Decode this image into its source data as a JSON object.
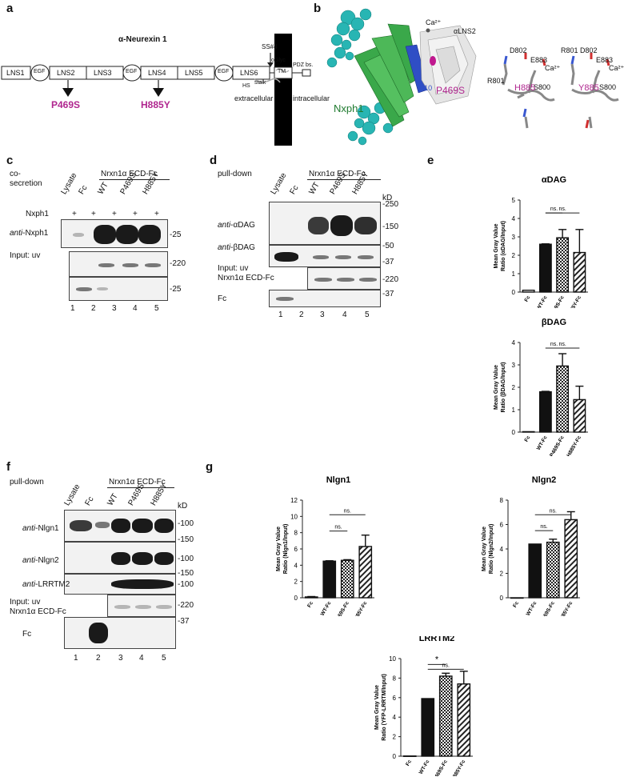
{
  "panel_labels": {
    "a": "a",
    "b": "b",
    "c": "c",
    "d": "d",
    "e": "e",
    "f": "f",
    "g": "g"
  },
  "panel_a": {
    "title": "α-Neurexin 1",
    "domains": [
      "LNS1",
      "EGF",
      "LNS2",
      "LNS3",
      "EGF",
      "LNS4",
      "LNS5",
      "EGF",
      "LNS6",
      "stalk",
      "TM",
      "PDZ bs."
    ],
    "ss4": "SS#4",
    "oglyc": "oGlyc",
    "hs": "HS",
    "extracellular": "extracellular",
    "intracellular": "intracellular",
    "mutation1": "P469S",
    "mutation2": "H885Y"
  },
  "panel_b": {
    "ca": "Ca²⁺",
    "alns2": "αLNS2",
    "nxph1": "Nxph1",
    "beta10": "β10",
    "p469s": "P469S",
    "left": {
      "d802": "D802",
      "e883": "E883",
      "ca": "Ca²⁺",
      "r801": "R801",
      "s800": "S800",
      "h885": "H885"
    },
    "right": {
      "r801": "R801",
      "d802": "D802",
      "e883": "E883",
      "ca": "Ca²⁺",
      "s800": "S800",
      "y885": "Y885"
    }
  },
  "panel_c": {
    "cosecretion": "co-\nsecretion",
    "header": "Nrxn1α ECD-Fc",
    "lanes": [
      "Lysate",
      "Fc",
      "WT",
      "P469S",
      "H885Y"
    ],
    "nxph1_row": "Nxph1",
    "plus": "+",
    "anti": "anti",
    "antibody": "-Nxph1",
    "input": "Input: uv",
    "mw": [
      "-25",
      "-220",
      "-25"
    ],
    "lane_numbers": [
      "1",
      "2",
      "3",
      "4",
      "5"
    ]
  },
  "panel_d": {
    "pulldown": "pull-down",
    "header": "Nrxn1α ECD-Fc",
    "lanes": [
      "Lysate",
      "Fc",
      "WT",
      "P469S",
      "H885Y"
    ],
    "kd": "kD",
    "anti": "anti",
    "ab1": "-αDAG",
    "ab2": "-βDAG",
    "input": "Input: uv",
    "input2": "Nrxn1α ECD-Fc",
    "fc": "Fc",
    "mw": [
      "-250",
      "-150",
      "-50",
      "-37",
      "-220",
      "-37"
    ],
    "lane_numbers": [
      "1",
      "2",
      "3",
      "4",
      "5"
    ]
  },
  "panel_f": {
    "pulldown": "pull-down",
    "header": "Nrxn1α ECD-Fc",
    "lanes": [
      "Lysate",
      "Fc",
      "WT",
      "P469S",
      "H885Y"
    ],
    "kd": "kD",
    "anti": "anti",
    "ab1": "-Nlgn1",
    "ab2": "-Nlgn2",
    "ab3": "-LRRTM2",
    "input": "Input: uv",
    "input2": "Nrxn1α ECD-Fc",
    "fc": "Fc",
    "mw": [
      "-100",
      "-150",
      "-100",
      "-150",
      "-100",
      "-220",
      "-37"
    ],
    "lane_numbers": [
      "1",
      "2",
      "3",
      "4",
      "5"
    ]
  },
  "chart_data": [
    {
      "type": "bar",
      "title": "αDAG",
      "ylabel": "Mean Gray Value\nRatio (αDAG/Input)",
      "categories": [
        "Fc",
        "WT-Fc",
        "P469S-Fc",
        "H885Y-Fc"
      ],
      "values": [
        0.1,
        2.6,
        2.95,
        2.15
      ],
      "errors": [
        0,
        0.02,
        0.45,
        1.25
      ],
      "ylim": [
        0,
        5
      ],
      "yticks": [
        0,
        1,
        2,
        3,
        4,
        5
      ],
      "sig": [
        {
          "from": 1,
          "to": 2,
          "label": "ns.",
          "level": 4.3
        },
        {
          "from": 1,
          "to": 3,
          "label": "ns.",
          "level": 4.3
        }
      ]
    },
    {
      "type": "bar",
      "title": "βDAG",
      "ylabel": "Mean Gray Value\nRatio (βDAG/Input)",
      "categories": [
        "Fc",
        "WT-Fc",
        "P469S-Fc",
        "H885Y-Fc"
      ],
      "values": [
        0.02,
        1.8,
        2.95,
        1.45
      ],
      "errors": [
        0,
        0.02,
        0.55,
        0.6
      ],
      "ylim": [
        0,
        4
      ],
      "yticks": [
        0,
        1,
        2,
        3,
        4
      ],
      "sig": [
        {
          "from": 1,
          "to": 2,
          "label": "ns.",
          "level": 3.75
        },
        {
          "from": 1,
          "to": 3,
          "label": "ns.",
          "level": 3.75
        }
      ]
    },
    {
      "type": "bar",
      "title": "Nlgn1",
      "ylabel": "Mean Gray Value\nRatio (Nlgn1/Input)",
      "categories": [
        "Fc",
        "WT-Fc",
        "P469S-Fc",
        "H885Y-Fc"
      ],
      "values": [
        0.1,
        4.5,
        4.6,
        6.3
      ],
      "errors": [
        0.05,
        0.05,
        0.08,
        1.4
      ],
      "ylim": [
        0,
        12
      ],
      "yticks": [
        0,
        2,
        4,
        6,
        8,
        10,
        12
      ],
      "sig": [
        {
          "from": 1,
          "to": 2,
          "label": "ns.",
          "level": 8.2
        },
        {
          "from": 1,
          "to": 3,
          "label": "ns.",
          "level": 10.2
        }
      ]
    },
    {
      "type": "bar",
      "title": "Nlgn2",
      "ylabel": "Mean Gray Value\nRatio (Nlgn2/Input)",
      "categories": [
        "Fc",
        "WT-Fc",
        "P469S-Fc",
        "H885Y-Fc"
      ],
      "values": [
        0,
        4.4,
        4.55,
        6.4
      ],
      "errors": [
        0,
        0,
        0.25,
        0.65
      ],
      "ylim": [
        0,
        8
      ],
      "yticks": [
        0,
        2,
        4,
        6,
        8
      ],
      "sig": [
        {
          "from": 1,
          "to": 2,
          "label": "ns.",
          "level": 5.5
        },
        {
          "from": 1,
          "to": 3,
          "label": "ns.",
          "level": 6.8
        }
      ]
    },
    {
      "type": "bar",
      "title": "LRRTM2",
      "ylabel": "Mean Gray Value\nRatio (YFP-LRRTM/Input)",
      "categories": [
        "Fc",
        "WT-Fc",
        "P469S-Fc",
        "H885Y-Fc"
      ],
      "values": [
        0.02,
        5.9,
        8.2,
        7.4
      ],
      "errors": [
        0,
        0,
        0.3,
        1.3
      ],
      "ylim": [
        0,
        10
      ],
      "yticks": [
        0,
        2,
        4,
        6,
        8,
        10
      ],
      "sig": [
        {
          "from": 1,
          "to": 2,
          "label": "*",
          "level": 9.4
        },
        {
          "from": 1,
          "to": 3,
          "label": "ns.",
          "level": 8.9
        }
      ]
    }
  ]
}
